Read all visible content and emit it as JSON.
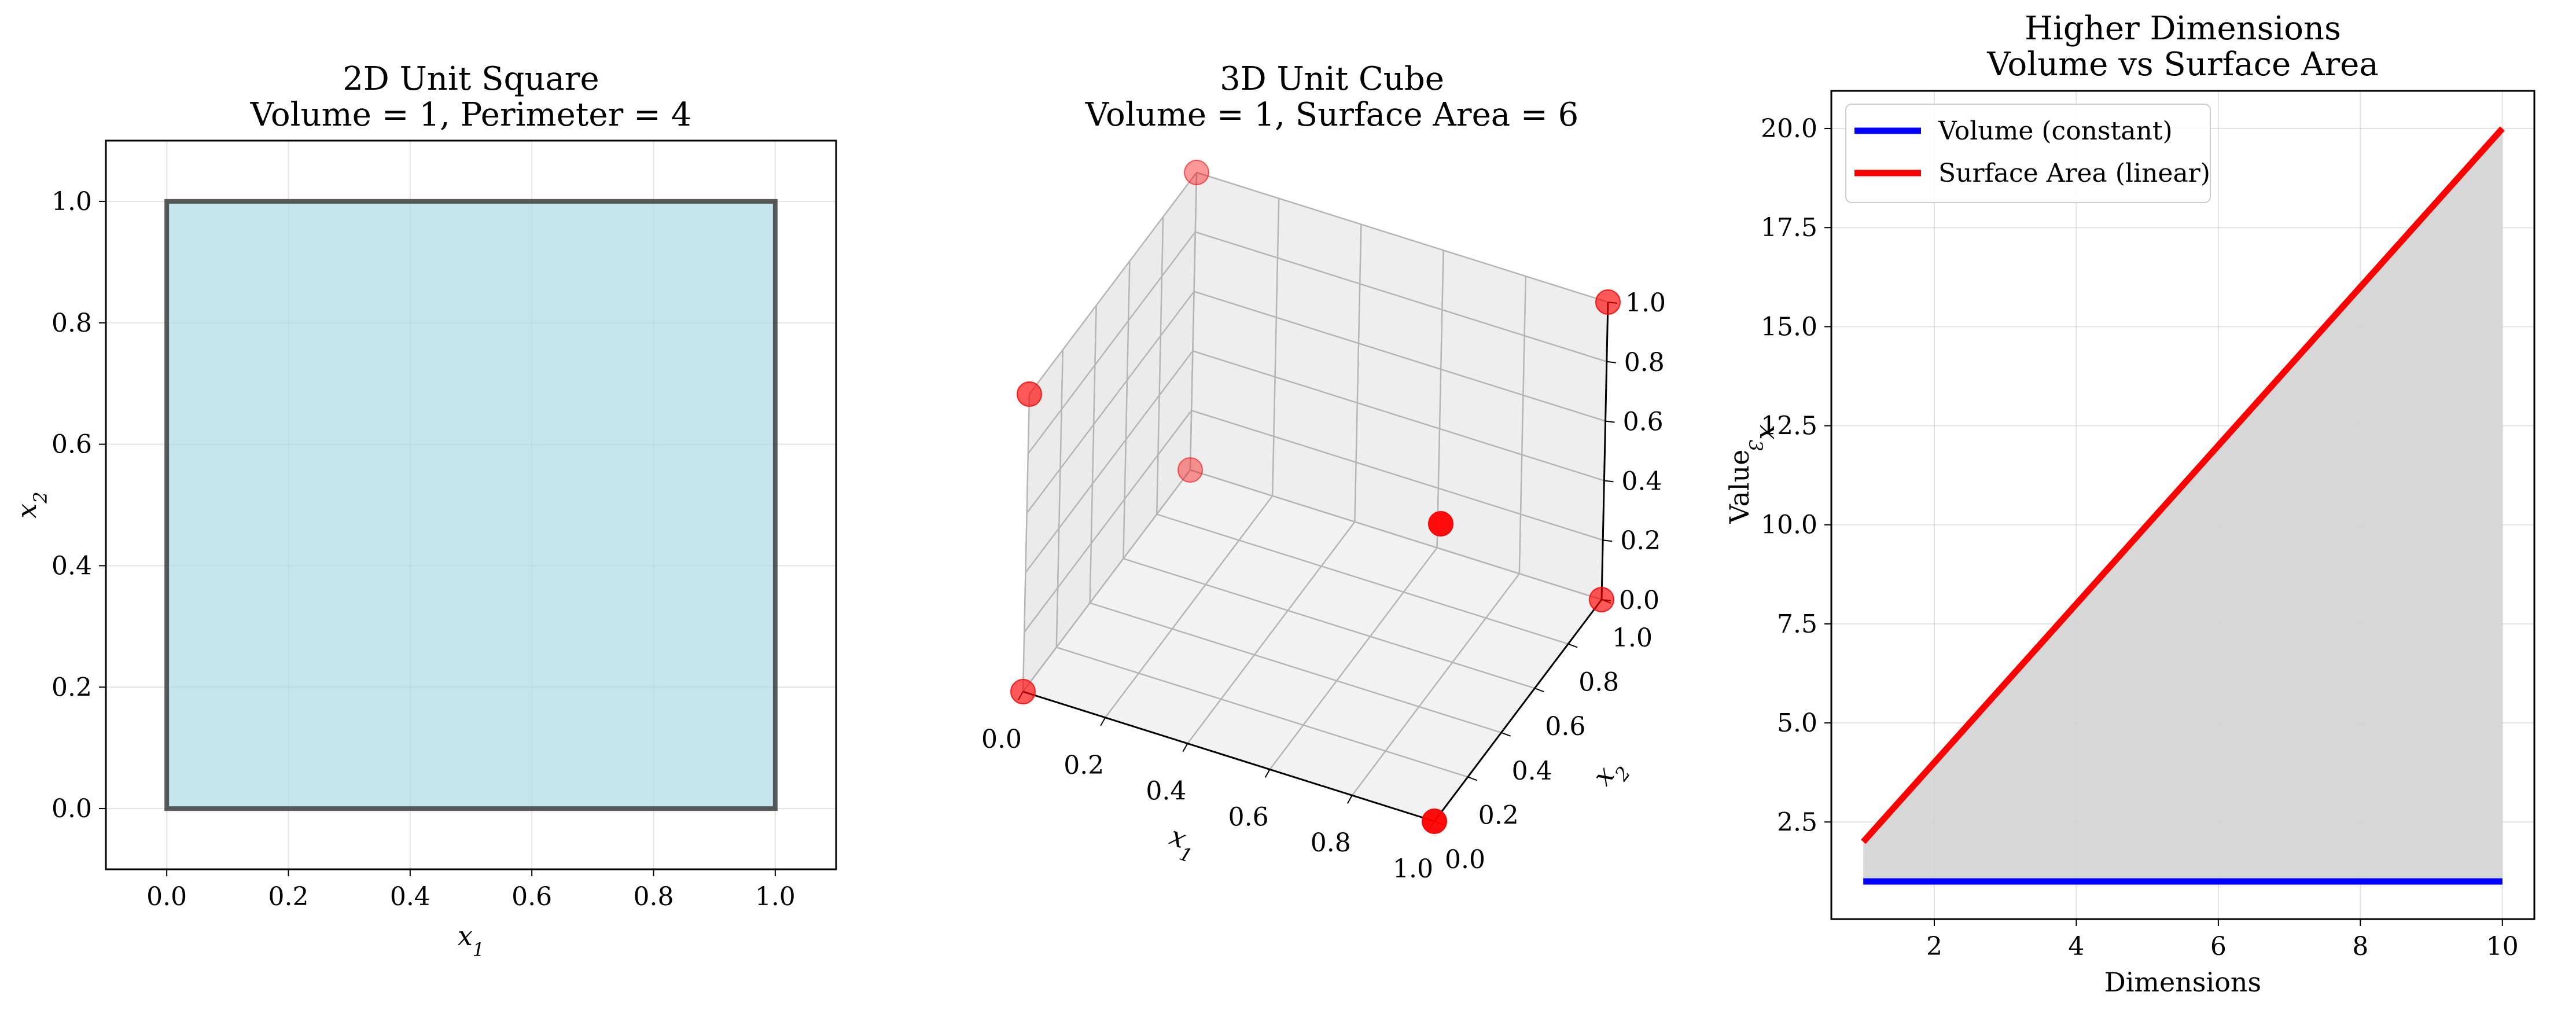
{
  "chart_data": [
    {
      "type": "area",
      "title": "2D Unit Square",
      "subtitle": "Volume = 1, Perimeter = 4",
      "xlabel": "x1",
      "ylabel": "x2",
      "xlim": [
        -0.1,
        1.1
      ],
      "ylim": [
        -0.1,
        1.1
      ],
      "grid": true,
      "xticks": [
        "0.0",
        "0.2",
        "0.4",
        "0.6",
        "0.8",
        "1.0"
      ],
      "yticks": [
        "0.0",
        "0.2",
        "0.4",
        "0.6",
        "0.8",
        "1.0"
      ],
      "polygon": [
        [
          0,
          0
        ],
        [
          1,
          0
        ],
        [
          1,
          1
        ],
        [
          0,
          1
        ]
      ],
      "fill_color": "#add8e6",
      "edge_color": "#333333"
    },
    {
      "type": "scatter",
      "title": "3D Unit Cube",
      "subtitle": "Volume = 1, Surface Area = 6",
      "xlabel": "x1",
      "ylabel": "x2",
      "zlabel": "x3",
      "xlim": [
        0,
        1
      ],
      "ylim": [
        0,
        1
      ],
      "zlim": [
        0,
        1
      ],
      "xticks": [
        "0.0",
        "0.2",
        "0.4",
        "0.6",
        "0.8",
        "1.0"
      ],
      "yticks": [
        "0.0",
        "0.2",
        "0.4",
        "0.6",
        "0.8",
        "1.0"
      ],
      "zticks": [
        "0.0",
        "0.2",
        "0.4",
        "0.6",
        "0.8",
        "1.0"
      ],
      "points": [
        [
          0,
          0,
          0
        ],
        [
          1,
          0,
          0
        ],
        [
          0,
          1,
          0
        ],
        [
          1,
          1,
          0
        ],
        [
          0,
          0,
          1
        ],
        [
          1,
          0,
          1
        ],
        [
          0,
          1,
          1
        ],
        [
          1,
          1,
          1
        ]
      ],
      "point_color": "#ff0000"
    },
    {
      "type": "line",
      "title": "Higher Dimensions",
      "subtitle": "Volume vs Surface Area",
      "xlabel": "Dimensions",
      "ylabel": "Value",
      "xlim": [
        0.55,
        10.45
      ],
      "ylim": [
        0.05,
        20.95
      ],
      "xticks": [
        "2",
        "4",
        "6",
        "8",
        "10"
      ],
      "yticks": [
        "2.5",
        "5.0",
        "7.5",
        "10.0",
        "12.5",
        "15.0",
        "17.5",
        "20.0"
      ],
      "grid": true,
      "legend_position": "top-left",
      "x": [
        1,
        10
      ],
      "series": [
        {
          "name": "Volume (constant)",
          "values": [
            1,
            1
          ],
          "color": "#0000ff"
        },
        {
          "name": "Surface Area (linear)",
          "values": [
            2,
            20
          ],
          "color": "#ff0000"
        }
      ],
      "fill_between": {
        "lower": [
          1,
          1
        ],
        "upper": [
          2,
          20
        ],
        "color": "#d3d3d3"
      }
    }
  ]
}
